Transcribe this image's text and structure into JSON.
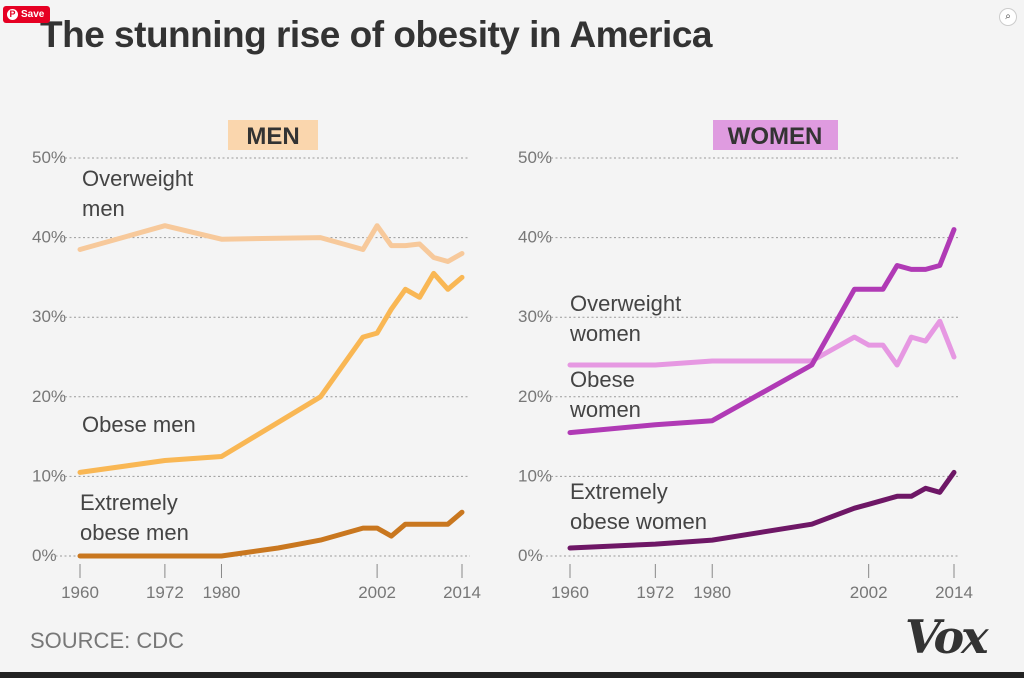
{
  "title": "The stunning rise of obesity in America",
  "source": "SOURCE: CDC",
  "logo_text": "Vox",
  "save_button": "Save",
  "colors": {
    "overweight_men": "#f7c99b",
    "obese_men": "#f9b754",
    "extremely_obese_men": "#c9771f",
    "overweight_women": "#e698e2",
    "obese_women": "#b03ab5",
    "extremely_obese_women": "#6e1766",
    "men_label_bg": "#fad6ad",
    "women_label_bg": "#df9be0"
  },
  "chart_data": [
    {
      "type": "line",
      "panel": "MEN",
      "xlim": [
        1960,
        2014
      ],
      "ylim": [
        0,
        50
      ],
      "xticks": [
        1960,
        1972,
        1980,
        2002,
        2014
      ],
      "yticks": [
        0,
        10,
        20,
        30,
        40,
        50
      ],
      "ytick_labels": [
        "0%",
        "10%",
        "20%",
        "30%",
        "40%",
        "50%"
      ],
      "series": [
        {
          "name": "Overweight men",
          "label_lines": [
            "Overweight",
            "men"
          ],
          "color_key": "overweight_men",
          "x": [
            1960,
            1972,
            1980,
            1994,
            2000,
            2002,
            2004,
            2006,
            2008,
            2010,
            2012,
            2014
          ],
          "y": [
            38.5,
            41.5,
            39.8,
            40.0,
            38.5,
            41.5,
            39.0,
            39.0,
            39.2,
            37.5,
            37.0,
            38.0
          ]
        },
        {
          "name": "Obese men",
          "label_lines": [
            "Obese men"
          ],
          "color_key": "obese_men",
          "x": [
            1960,
            1972,
            1980,
            1994,
            2000,
            2002,
            2004,
            2006,
            2008,
            2010,
            2012,
            2014
          ],
          "y": [
            10.5,
            12.0,
            12.5,
            20.0,
            27.5,
            28.0,
            31.0,
            33.5,
            32.5,
            35.5,
            33.5,
            35.0
          ]
        },
        {
          "name": "Extremely obese men",
          "label_lines": [
            "Extremely",
            "obese men"
          ],
          "color_key": "extremely_obese_men",
          "x": [
            1960,
            1972,
            1980,
            1988,
            1991,
            1994,
            2000,
            2002,
            2004,
            2006,
            2008,
            2010,
            2012,
            2014
          ],
          "y": [
            0.0,
            0.0,
            0.0,
            1.0,
            1.5,
            2.0,
            3.5,
            3.5,
            2.5,
            4.0,
            4.0,
            4.0,
            4.0,
            5.5
          ]
        }
      ]
    },
    {
      "type": "line",
      "panel": "WOMEN",
      "xlim": [
        1960,
        2014
      ],
      "ylim": [
        0,
        50
      ],
      "xticks": [
        1960,
        1972,
        1980,
        2002,
        2014
      ],
      "yticks": [
        0,
        10,
        20,
        30,
        40,
        50
      ],
      "ytick_labels": [
        "0%",
        "10%",
        "20%",
        "30%",
        "40%",
        "50%"
      ],
      "series": [
        {
          "name": "Overweight women",
          "label_lines": [
            "Overweight",
            "women"
          ],
          "color_key": "overweight_women",
          "x": [
            1960,
            1972,
            1980,
            1994,
            2000,
            2002,
            2004,
            2006,
            2008,
            2010,
            2012,
            2014
          ],
          "y": [
            24.0,
            24.0,
            24.5,
            24.5,
            27.5,
            26.5,
            26.5,
            24.0,
            27.5,
            27.0,
            29.5,
            25.0
          ]
        },
        {
          "name": "Obese women",
          "label_lines": [
            "Obese",
            "women"
          ],
          "color_key": "obese_women",
          "x": [
            1960,
            1972,
            1980,
            1994,
            2000,
            2002,
            2004,
            2006,
            2008,
            2010,
            2012,
            2014
          ],
          "y": [
            15.5,
            16.5,
            17.0,
            24.0,
            33.5,
            33.5,
            33.5,
            36.5,
            36.0,
            36.0,
            36.5,
            41.0
          ]
        },
        {
          "name": "Extremely obese women",
          "label_lines": [
            "Extremely",
            "obese women"
          ],
          "color_key": "extremely_obese_women",
          "x": [
            1960,
            1972,
            1980,
            1994,
            2000,
            2002,
            2004,
            2006,
            2008,
            2010,
            2012,
            2014
          ],
          "y": [
            1.0,
            1.5,
            2.0,
            4.0,
            6.0,
            6.5,
            7.0,
            7.5,
            7.5,
            8.5,
            8.0,
            10.5
          ]
        }
      ]
    }
  ]
}
